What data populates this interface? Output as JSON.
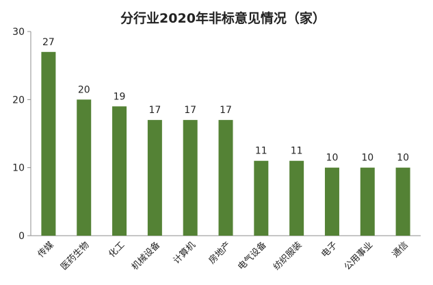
{
  "chart_data": {
    "type": "bar",
    "title": "分行业2020年非标意见情况（家）",
    "categories": [
      "传媒",
      "医药生物",
      "化工",
      "机械设备",
      "计算机",
      "房地产",
      "电气设备",
      "纺织服装",
      "电子",
      "公用事业",
      "通信"
    ],
    "values": [
      27,
      20,
      19,
      17,
      17,
      17,
      11,
      11,
      10,
      10,
      10
    ],
    "ylim": [
      0,
      30
    ],
    "yticks": [
      0,
      10,
      20,
      30
    ],
    "grid": false,
    "legend": "none",
    "bar_color": "#548235",
    "axis_color": "#8c8c8c"
  }
}
